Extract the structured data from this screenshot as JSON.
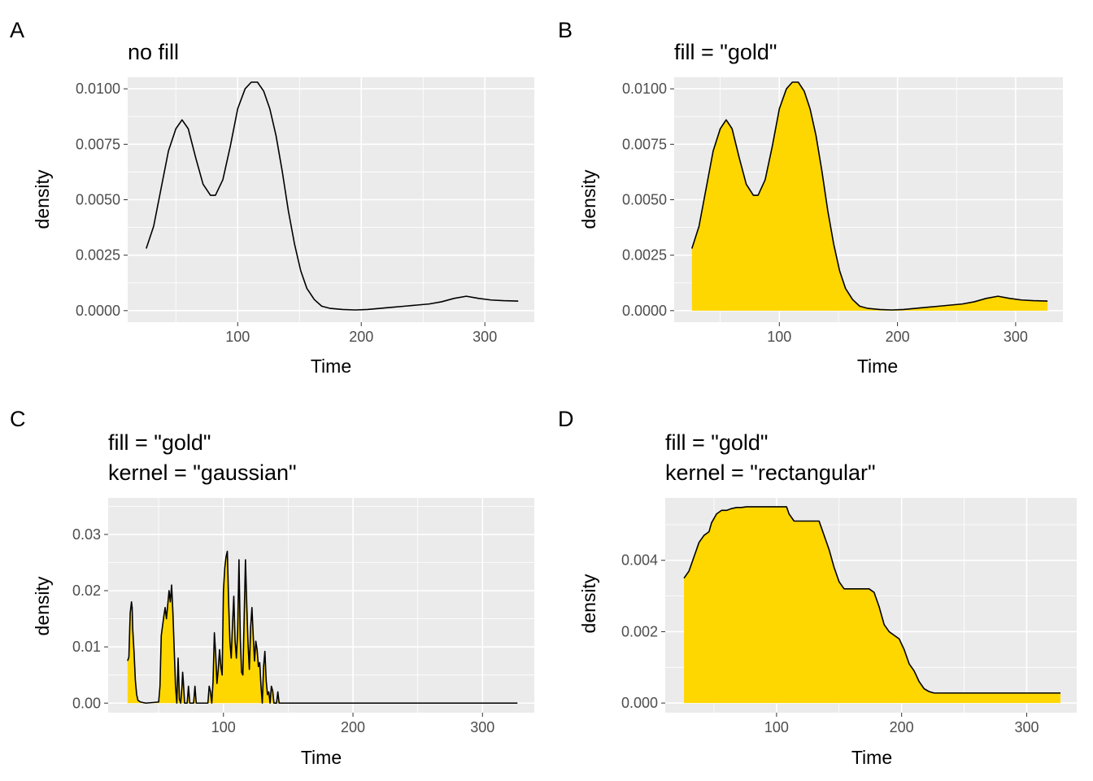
{
  "figure": {
    "panels": [
      {
        "tag": "A",
        "title_lines": [
          "no fill"
        ],
        "xlabel": "Time",
        "ylabel": "density"
      },
      {
        "tag": "B",
        "title_lines": [
          "fill = \"gold\""
        ],
        "xlabel": "Time",
        "ylabel": "density"
      },
      {
        "tag": "C",
        "title_lines": [
          "fill = \"gold\"",
          "kernel = \"gaussian\""
        ],
        "xlabel": "Time",
        "ylabel": "density"
      },
      {
        "tag": "D",
        "title_lines": [
          "fill = \"gold\"",
          "kernel = \"rectangular\""
        ],
        "xlabel": "Time",
        "ylabel": "density"
      }
    ]
  },
  "colors": {
    "panel_background": "#ebebeb",
    "grid": "#ffffff",
    "line": "#000000",
    "fill": "#ffd700",
    "tick_label": "#4d4d4d"
  },
  "chart_data": [
    {
      "type": "area",
      "tag": "A",
      "title": "no fill",
      "xlabel": "Time",
      "ylabel": "density",
      "fill": "none",
      "xlim": [
        11,
        340
      ],
      "ylim": [
        -0.00052,
        0.01052
      ],
      "x_ticks": [
        100,
        200,
        300
      ],
      "x_tick_labels": [
        "100",
        "200",
        "300"
      ],
      "y_ticks": [
        0,
        0.0025,
        0.005,
        0.0075,
        0.01
      ],
      "y_tick_labels": [
        "0.0000",
        "0.0025",
        "0.0050",
        "0.0075",
        "0.0100"
      ],
      "grid": true,
      "x": [
        26,
        32,
        38,
        44,
        50,
        55,
        60,
        66,
        72,
        78,
        82,
        88,
        94,
        100,
        106,
        111,
        116,
        121,
        126,
        131,
        136,
        141,
        146,
        151,
        156,
        162,
        168,
        175,
        185,
        195,
        205,
        215,
        225,
        235,
        245,
        255,
        265,
        275,
        285,
        295,
        305,
        315,
        327
      ],
      "y": [
        0.0028,
        0.0038,
        0.0055,
        0.0072,
        0.0082,
        0.0086,
        0.0082,
        0.0069,
        0.0057,
        0.0052,
        0.0052,
        0.0059,
        0.0074,
        0.0091,
        0.01,
        0.0103,
        0.0103,
        0.0099,
        0.0091,
        0.0079,
        0.0063,
        0.0045,
        0.003,
        0.0018,
        0.001,
        0.0005,
        0.0002,
        0.0001,
        5e-05,
        3e-05,
        5e-05,
        0.0001,
        0.00015,
        0.0002,
        0.00025,
        0.0003,
        0.0004,
        0.00055,
        0.00065,
        0.00055,
        0.00048,
        0.00045,
        0.00043
      ]
    },
    {
      "type": "area",
      "tag": "B",
      "title": "fill = \"gold\"",
      "xlabel": "Time",
      "ylabel": "density",
      "fill": "gold",
      "xlim": [
        11,
        340
      ],
      "ylim": [
        -0.00052,
        0.01052
      ],
      "x_ticks": [
        100,
        200,
        300
      ],
      "x_tick_labels": [
        "100",
        "200",
        "300"
      ],
      "y_ticks": [
        0,
        0.0025,
        0.005,
        0.0075,
        0.01
      ],
      "y_tick_labels": [
        "0.0000",
        "0.0025",
        "0.0050",
        "0.0075",
        "0.0100"
      ],
      "grid": true,
      "x": [
        26,
        32,
        38,
        44,
        50,
        55,
        60,
        66,
        72,
        78,
        82,
        88,
        94,
        100,
        106,
        111,
        116,
        121,
        126,
        131,
        136,
        141,
        146,
        151,
        156,
        162,
        168,
        175,
        185,
        195,
        205,
        215,
        225,
        235,
        245,
        255,
        265,
        275,
        285,
        295,
        305,
        315,
        327
      ],
      "y": [
        0.0028,
        0.0038,
        0.0055,
        0.0072,
        0.0082,
        0.0086,
        0.0082,
        0.0069,
        0.0057,
        0.0052,
        0.0052,
        0.0059,
        0.0074,
        0.0091,
        0.01,
        0.0103,
        0.0103,
        0.0099,
        0.0091,
        0.0079,
        0.0063,
        0.0045,
        0.003,
        0.0018,
        0.001,
        0.0005,
        0.0002,
        0.0001,
        5e-05,
        3e-05,
        5e-05,
        0.0001,
        0.00015,
        0.0002,
        0.00025,
        0.0003,
        0.0004,
        0.00055,
        0.00065,
        0.00055,
        0.00048,
        0.00045,
        0.00043
      ]
    },
    {
      "type": "area",
      "tag": "C",
      "title": "fill = \"gold\"\nkernel = \"gaussian\"",
      "xlabel": "Time",
      "ylabel": "density",
      "fill": "gold",
      "kernel": "gaussian",
      "xlim": [
        11,
        340
      ],
      "ylim": [
        -0.0017,
        0.0365
      ],
      "x_ticks": [
        100,
        200,
        300
      ],
      "x_tick_labels": [
        "100",
        "200",
        "300"
      ],
      "y_ticks": [
        0,
        0.01,
        0.02,
        0.03
      ],
      "y_tick_labels": [
        "0.00",
        "0.01",
        "0.02",
        "0.03"
      ],
      "grid": true,
      "x": [
        26,
        27,
        28,
        29,
        29.5,
        30,
        31,
        32,
        33,
        34,
        36,
        40,
        50,
        51,
        52,
        54,
        55,
        56,
        58,
        59,
        60,
        61,
        62,
        63,
        64,
        65,
        66,
        67,
        68,
        68.5,
        69,
        70,
        71,
        72,
        73,
        74,
        75,
        76,
        76.5,
        77,
        78,
        79,
        80,
        82,
        84,
        86,
        88,
        89,
        90,
        91,
        92,
        93,
        94,
        95,
        96,
        97,
        98,
        99,
        100,
        101,
        102,
        103,
        104,
        105,
        106,
        107,
        108,
        109,
        110,
        111,
        112,
        113,
        114,
        115,
        116,
        117,
        118,
        119,
        120,
        121,
        122,
        123,
        124,
        125,
        126,
        127,
        128,
        129,
        130,
        131,
        132,
        133,
        134,
        135,
        136,
        137,
        138,
        139,
        140,
        141,
        142,
        143,
        144,
        145,
        146,
        147,
        148,
        149,
        150,
        151,
        152,
        153,
        154,
        155,
        156,
        157,
        158,
        159,
        160,
        165,
        170,
        200,
        240,
        244,
        245,
        246,
        250,
        255,
        276,
        278,
        279,
        280,
        281,
        282,
        283,
        284,
        285,
        286,
        287,
        288,
        296,
        298,
        299,
        300,
        302,
        317,
        319,
        320,
        321,
        322,
        323,
        324,
        325,
        326,
        327
      ],
      "y": [
        0.0075,
        0.0082,
        0.016,
        0.018,
        0.017,
        0.013,
        0.009,
        0.004,
        0.0015,
        0.0005,
        0.0002,
        0.0,
        0.0002,
        0.003,
        0.012,
        0.0155,
        0.017,
        0.015,
        0.02,
        0.018,
        0.021,
        0.016,
        0.0095,
        0.003,
        0.0,
        0.008,
        0.0007,
        0.0,
        0.003,
        0.0055,
        0.004,
        0.0,
        0.0,
        0.0,
        0.003,
        0.0,
        0.0,
        0.0,
        0.0,
        0.0,
        0.003,
        0.0,
        0.0,
        0.0,
        0.0,
        0.0,
        0.0,
        0.003,
        0.002,
        0.0,
        0.004,
        0.0125,
        0.0088,
        0.0035,
        0.006,
        0.0095,
        0.0065,
        0.005,
        0.02,
        0.024,
        0.026,
        0.027,
        0.018,
        0.011,
        0.008,
        0.014,
        0.019,
        0.011,
        0.008,
        0.013,
        0.0255,
        0.0115,
        0.0055,
        0.005,
        0.015,
        0.0255,
        0.0175,
        0.0105,
        0.006,
        0.0135,
        0.017,
        0.012,
        0.0075,
        0.011,
        0.0095,
        0.0065,
        0.0072,
        0.003,
        0.0,
        0.0065,
        0.0092,
        0.004,
        0.0015,
        0.002,
        0.0,
        0.003,
        0.0022,
        0.0,
        0.0,
        0.0,
        0.002,
        0.0,
        0.0,
        0.0,
        0.0,
        0.0,
        0.0,
        0.0,
        0.0,
        0.0,
        0.0,
        0.0,
        0.0,
        0.0,
        0.0,
        0.0,
        0.0,
        0.0,
        0.0,
        0.0,
        0.0,
        0.0,
        0.0,
        0.0,
        0.0,
        0.0,
        0.0,
        0.0,
        0.0,
        0.0,
        0.0,
        0.0,
        0.0,
        0.0,
        0.0,
        0.0,
        0.0,
        0.0,
        0.0,
        0.0,
        0.0,
        0.0,
        0.0,
        0.0,
        0.0,
        0.0,
        0.0,
        0.0,
        0.0,
        0.0,
        0.0,
        0.0,
        0.0,
        0.0,
        0.0
      ]
    },
    {
      "type": "area",
      "tag": "D",
      "title": "fill = \"gold\"\nkernel = \"rectangular\"",
      "xlabel": "Time",
      "ylabel": "density",
      "fill": "gold",
      "kernel": "rectangular",
      "xlim": [
        11,
        340
      ],
      "ylim": [
        -0.00027,
        0.00575
      ],
      "x_ticks": [
        100,
        200,
        300
      ],
      "x_tick_labels": [
        "100",
        "200",
        "300"
      ],
      "y_ticks": [
        0,
        0.002,
        0.004
      ],
      "y_tick_labels": [
        "0.000",
        "0.002",
        "0.004"
      ],
      "grid": true,
      "x": [
        26,
        28,
        30,
        32,
        34,
        36,
        38,
        40,
        42,
        44,
        46,
        48,
        52,
        56,
        60,
        64,
        68,
        72,
        76,
        80,
        84,
        88,
        92,
        96,
        100,
        104,
        108,
        110,
        114,
        118,
        122,
        126,
        130,
        134,
        138,
        142,
        146,
        150,
        154,
        158,
        162,
        166,
        170,
        174,
        178,
        182,
        186,
        190,
        194,
        198,
        202,
        206,
        210,
        214,
        218,
        222,
        226,
        230,
        234,
        238,
        242,
        246,
        250,
        260,
        280,
        300,
        327
      ],
      "y": [
        0.0035,
        0.0036,
        0.0037,
        0.0039,
        0.0041,
        0.0043,
        0.0045,
        0.0046,
        0.0047,
        0.00475,
        0.0048,
        0.00505,
        0.0053,
        0.0054,
        0.0054,
        0.00545,
        0.00548,
        0.00548,
        0.0055,
        0.0055,
        0.0055,
        0.0055,
        0.0055,
        0.0055,
        0.0055,
        0.0055,
        0.0055,
        0.0053,
        0.0051,
        0.0051,
        0.0051,
        0.0051,
        0.0051,
        0.0051,
        0.0047,
        0.0043,
        0.0038,
        0.0034,
        0.0032,
        0.0032,
        0.0032,
        0.0032,
        0.0032,
        0.0032,
        0.0031,
        0.0027,
        0.0022,
        0.002,
        0.0019,
        0.0018,
        0.0015,
        0.0011,
        0.0009,
        0.0006,
        0.0004,
        0.00032,
        0.00028,
        0.00028,
        0.00028,
        0.00028,
        0.00028,
        0.00028,
        0.00028,
        0.00028,
        0.00028,
        0.00028,
        0.00028
      ]
    }
  ]
}
